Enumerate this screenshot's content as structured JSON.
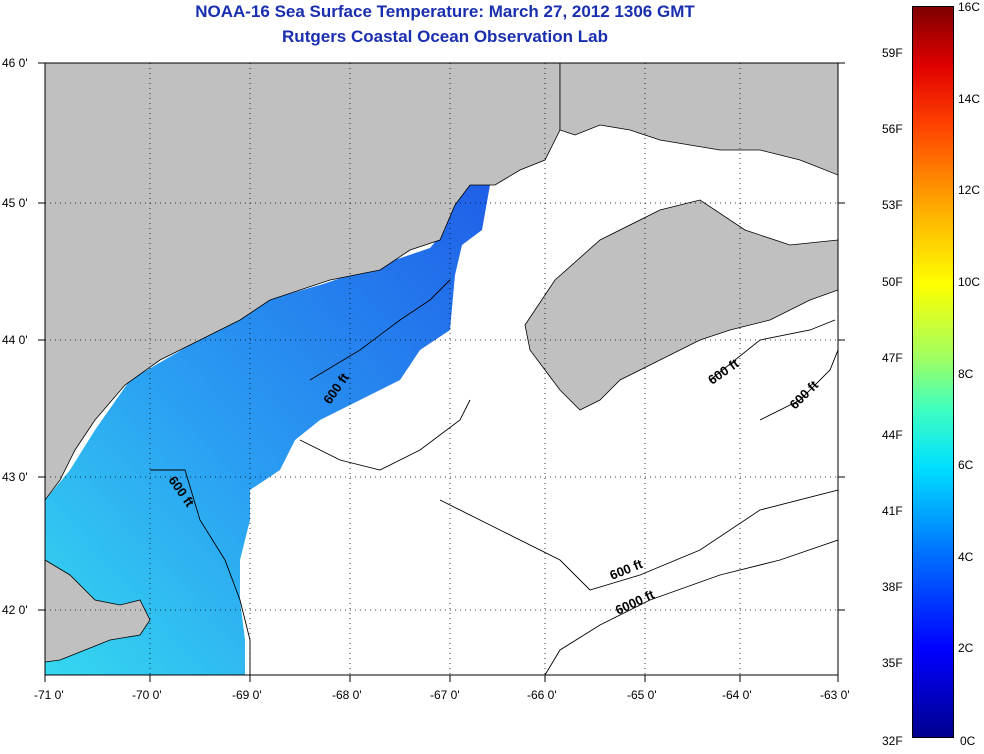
{
  "title": {
    "line1": "NOAA-16 Sea Surface Temperature:  March 27, 2012 1306 GMT",
    "line2": "Rutgers Coastal Ocean Observation Lab"
  },
  "map": {
    "lon_range": [
      -71,
      -63
    ],
    "lat_range": [
      41.5,
      46
    ],
    "lon_ticks": [
      "-71 0'",
      "-70 0'",
      "-69 0'",
      "-68 0'",
      "-67 0'",
      "-66 0'",
      "-65 0'",
      "-64 0'",
      "-63 0'"
    ],
    "lat_ticks": [
      "46 0'",
      "45 0'",
      "44 0'",
      "43 0'",
      "42 0'"
    ],
    "grid": "dotted",
    "colors": {
      "land": "#c0c0c0",
      "cloud": "#ffffff",
      "contour": "#000000"
    },
    "contour_labels": [
      "600 ft",
      "600 ft",
      "600 ft",
      "600 ft",
      "600 ft",
      "6000 ft"
    ]
  },
  "colorbar": {
    "celsius_labels": [
      "16C",
      "14C",
      "12C",
      "10C",
      "8C",
      "6C",
      "4C",
      "2C",
      "0C"
    ],
    "fahrenheit_labels": [
      "59F",
      "56F",
      "53F",
      "50F",
      "47F",
      "44F",
      "41F",
      "38F",
      "35F",
      "32F"
    ],
    "fahrenheit_values": [
      59,
      56,
      53,
      50,
      47,
      44,
      41,
      38,
      35,
      32
    ],
    "range_c": [
      0,
      16
    ]
  }
}
